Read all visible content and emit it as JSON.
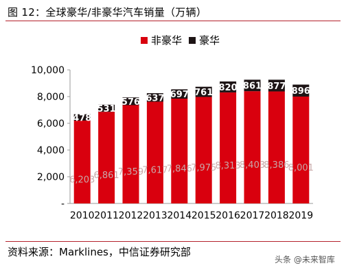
{
  "title": "图 12：全球豪华/非豪华汽车销量（万辆）",
  "source": "资料来源：Marklines，中信证券研究部",
  "watermark": "头条 @未来智库",
  "colors": {
    "non_luxury": "#d9000e",
    "luxury": "#1d1415",
    "frame_rule": "#b3202a",
    "axis": "#9a9a9a"
  },
  "chart_data": {
    "type": "bar",
    "stacked": true,
    "categories": [
      "2010",
      "2011",
      "2012",
      "2013",
      "2014",
      "2015",
      "2016",
      "2017",
      "2018",
      "2019"
    ],
    "series": [
      {
        "name": "非豪华",
        "color": "#d9000e",
        "values": [
          6203,
          6861,
          7359,
          7617,
          7846,
          7975,
          8313,
          8403,
          8386,
          8001
        ],
        "labels": [
          "6,203",
          "6,861",
          "7,359",
          "7,617",
          "7,846",
          "7,975",
          "8,313",
          "8,403",
          "8,386",
          "8,001"
        ]
      },
      {
        "name": "豪华",
        "color": "#1d1415",
        "values": [
          478,
          531,
          576,
          637,
          697,
          761,
          820,
          861,
          877,
          896
        ]
      }
    ],
    "ylim": [
      0,
      10000
    ],
    "yticks": [
      0,
      2000,
      4000,
      6000,
      8000,
      10000
    ],
    "ytick_labels": [
      "-",
      "2,000",
      "4,000",
      "6,000",
      "8,000",
      "10,000"
    ],
    "legend_position": "top-center",
    "grid": false
  }
}
